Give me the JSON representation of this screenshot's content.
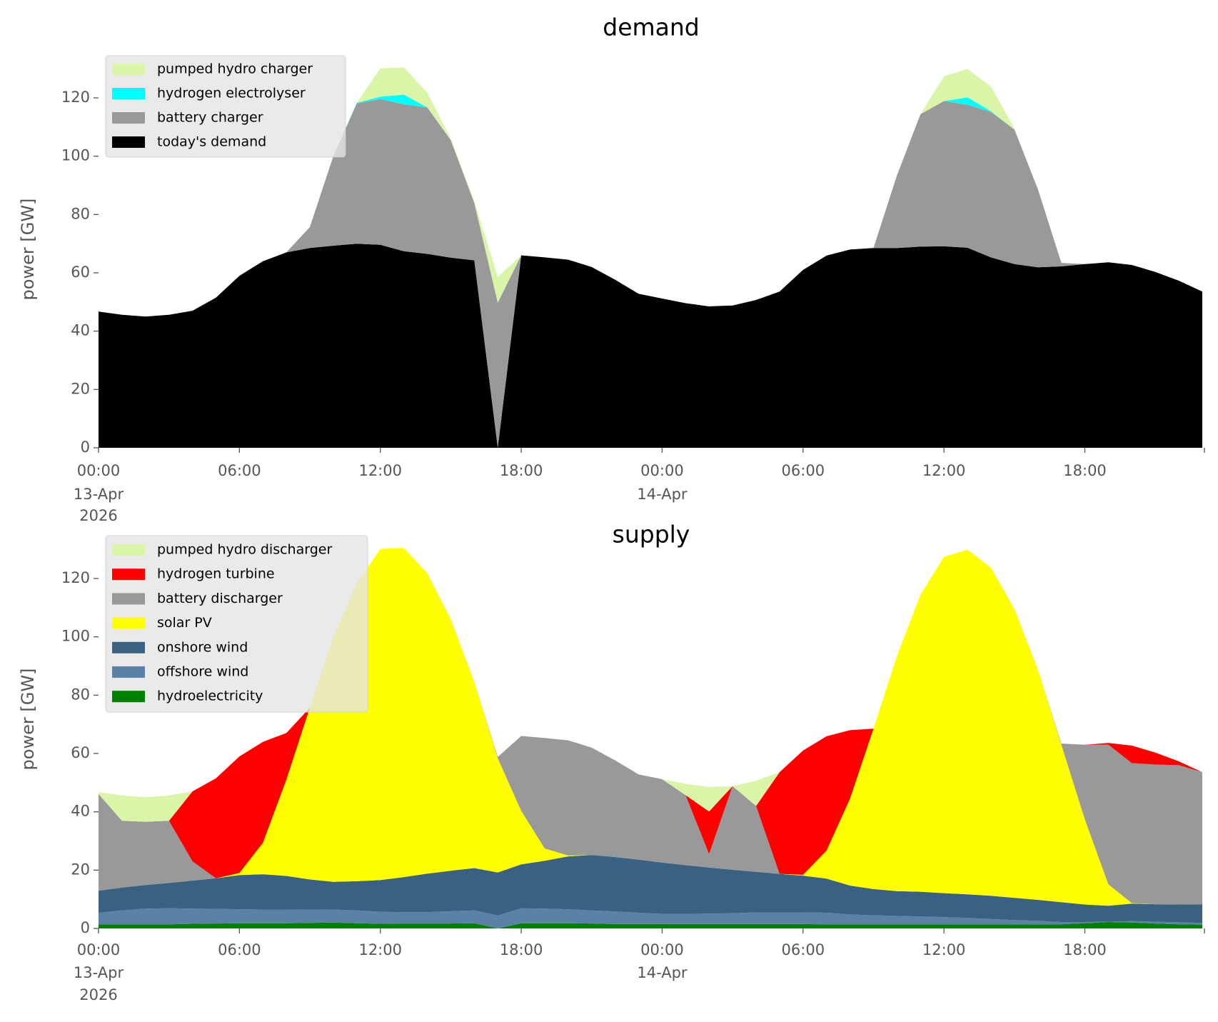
{
  "chart_data": [
    {
      "type": "area",
      "stacked": true,
      "title": "demand",
      "ylabel": "power [GW]",
      "xlabel": "",
      "ylim": [
        0,
        135
      ],
      "grid": false,
      "legend_position": "top-left",
      "y_ticks": [
        "0",
        "20",
        "40",
        "60",
        "80",
        "100",
        "120"
      ],
      "x_ticks": [
        {
          "time": "00:00",
          "date": "13-Apr",
          "year": "2026"
        },
        {
          "time": "06:00"
        },
        {
          "time": "12:00"
        },
        {
          "time": "18:00"
        },
        {
          "time": "00:00",
          "date": "14-Apr"
        },
        {
          "time": "06:00"
        },
        {
          "time": "12:00"
        },
        {
          "time": "18:00"
        }
      ],
      "x": [
        "2026-04-13 00:00",
        "2026-04-13 01:00",
        "2026-04-13 02:00",
        "2026-04-13 03:00",
        "2026-04-13 04:00",
        "2026-04-13 05:00",
        "2026-04-13 06:00",
        "2026-04-13 07:00",
        "2026-04-13 08:00",
        "2026-04-13 09:00",
        "2026-04-13 10:00",
        "2026-04-13 11:00",
        "2026-04-13 12:00",
        "2026-04-13 13:00",
        "2026-04-13 14:00",
        "2026-04-13 15:00",
        "2026-04-13 16:00",
        "2026-04-13 17:00",
        "2026-04-13 18:00",
        "2026-04-13 19:00",
        "2026-04-13 20:00",
        "2026-04-13 21:00",
        "2026-04-13 22:00",
        "2026-04-13 23:00",
        "2026-04-14 00:00",
        "2026-04-14 01:00",
        "2026-04-14 02:00",
        "2026-04-14 03:00",
        "2026-04-14 04:00",
        "2026-04-14 05:00",
        "2026-04-14 06:00",
        "2026-04-14 07:00",
        "2026-04-14 08:00",
        "2026-04-14 09:00",
        "2026-04-14 10:00",
        "2026-04-14 11:00",
        "2026-04-14 12:00",
        "2026-04-14 13:00",
        "2026-04-14 14:00",
        "2026-04-14 15:00",
        "2026-04-14 16:00",
        "2026-04-14 17:00",
        "2026-04-14 18:00",
        "2026-04-14 19:00",
        "2026-04-14 20:00",
        "2026-04-14 21:00",
        "2026-04-14 22:00",
        "2026-04-14 23:00"
      ],
      "series": [
        {
          "name": "today's demand",
          "color": "#000000",
          "values": [
            46.7,
            45.6,
            45,
            45.6,
            47,
            51.5,
            59,
            64,
            67,
            68.5,
            69.3,
            70,
            69.6,
            67.4,
            66.5,
            65.2,
            64.3,
            0,
            66,
            65.3,
            64.5,
            62,
            57.6,
            52.8,
            51.2,
            49.6,
            48.5,
            48.8,
            50.7,
            53.6,
            61,
            65.9,
            68,
            68.5,
            68.5,
            69,
            69.1,
            68.6,
            65.3,
            63,
            61.9,
            62.2,
            63,
            63.6,
            62.7,
            60.3,
            57.3,
            53.6
          ]
        },
        {
          "name": "battery charger",
          "color": "#999999",
          "values": [
            0,
            0,
            0,
            0,
            0,
            0,
            0,
            0,
            0,
            7.2,
            30.7,
            48.1,
            50,
            50.4,
            50.2,
            40.3,
            19.7,
            49.8,
            0,
            0,
            0,
            0,
            0,
            0,
            0,
            0,
            0,
            0,
            0,
            0,
            0,
            0,
            0,
            0,
            25,
            45.4,
            49.8,
            49,
            49.9,
            46.1,
            26.8,
            1.2,
            0,
            0,
            0,
            0,
            0,
            0
          ]
        },
        {
          "name": "hydrogen electrolyser",
          "color": "#00ffff",
          "values": [
            0,
            0,
            0,
            0,
            0,
            0,
            0,
            0,
            0,
            0,
            0,
            0.2,
            0.8,
            3.3,
            0,
            0,
            0,
            0,
            0,
            0,
            0,
            0,
            0,
            0,
            0,
            0,
            0,
            0,
            0,
            0,
            0,
            0,
            0,
            0,
            0,
            0,
            0,
            2.6,
            0.2,
            0,
            0,
            0,
            0,
            0,
            0,
            0,
            0,
            0
          ]
        },
        {
          "name": "pumped hydro charger",
          "color": "#d9f5a8",
          "values": [
            0,
            0,
            0,
            0,
            0,
            0,
            0,
            0,
            0,
            0,
            0,
            0,
            9.7,
            9.4,
            5.1,
            0.5,
            0.5,
            8.8,
            0,
            0,
            0,
            0,
            0,
            0,
            0,
            0,
            0,
            0,
            0,
            0,
            0,
            0,
            0,
            0,
            0,
            0,
            8.5,
            9.7,
            8.5,
            0.4,
            0,
            0,
            0,
            0,
            0,
            0,
            0,
            0
          ]
        }
      ]
    },
    {
      "type": "area",
      "stacked": true,
      "title": "supply",
      "ylabel": "power [GW]",
      "xlabel": "",
      "ylim": [
        0,
        135
      ],
      "grid": false,
      "legend_position": "top-left",
      "y_ticks": [
        "0",
        "20",
        "40",
        "60",
        "80",
        "100",
        "120"
      ],
      "x_ticks": [
        {
          "time": "00:00",
          "date": "13-Apr",
          "year": "2026"
        },
        {
          "time": "06:00"
        },
        {
          "time": "12:00"
        },
        {
          "time": "18:00"
        },
        {
          "time": "00:00",
          "date": "14-Apr"
        },
        {
          "time": "06:00"
        },
        {
          "time": "12:00"
        },
        {
          "time": "18:00"
        }
      ],
      "x": [
        "2026-04-13 00:00",
        "2026-04-13 01:00",
        "2026-04-13 02:00",
        "2026-04-13 03:00",
        "2026-04-13 04:00",
        "2026-04-13 05:00",
        "2026-04-13 06:00",
        "2026-04-13 07:00",
        "2026-04-13 08:00",
        "2026-04-13 09:00",
        "2026-04-13 10:00",
        "2026-04-13 11:00",
        "2026-04-13 12:00",
        "2026-04-13 13:00",
        "2026-04-13 14:00",
        "2026-04-13 15:00",
        "2026-04-13 16:00",
        "2026-04-13 17:00",
        "2026-04-13 18:00",
        "2026-04-13 19:00",
        "2026-04-13 20:00",
        "2026-04-13 21:00",
        "2026-04-13 22:00",
        "2026-04-13 23:00",
        "2026-04-14 00:00",
        "2026-04-14 01:00",
        "2026-04-14 02:00",
        "2026-04-14 03:00",
        "2026-04-14 04:00",
        "2026-04-14 05:00",
        "2026-04-14 06:00",
        "2026-04-14 07:00",
        "2026-04-14 08:00",
        "2026-04-14 09:00",
        "2026-04-14 10:00",
        "2026-04-14 11:00",
        "2026-04-14 12:00",
        "2026-04-14 13:00",
        "2026-04-14 14:00",
        "2026-04-14 15:00",
        "2026-04-14 16:00",
        "2026-04-14 17:00",
        "2026-04-14 18:00",
        "2026-04-14 19:00",
        "2026-04-14 20:00",
        "2026-04-14 21:00",
        "2026-04-14 22:00",
        "2026-04-14 23:00"
      ],
      "series": [
        {
          "name": "hydroelectricity",
          "color": "#008000",
          "values": [
            1.4,
            1.4,
            1.4,
            1.4,
            1.6,
            1.7,
            1.8,
            1.8,
            1.8,
            1.9,
            2.0,
            1.8,
            1.6,
            1.7,
            1.7,
            1.7,
            1.8,
            0,
            1.8,
            1.8,
            1.8,
            1.7,
            1.5,
            1.5,
            1.5,
            1.5,
            1.5,
            1.5,
            1.5,
            1.5,
            1.5,
            1.4,
            1.4,
            1.4,
            1.4,
            1.4,
            1.4,
            1.4,
            1.4,
            1.4,
            1.4,
            1.4,
            1.8,
            2.2,
            2.0,
            1.7,
            1.4,
            1.3
          ]
        },
        {
          "name": "offshore wind",
          "color": "#5b82a6",
          "values": [
            4.0,
            4.8,
            5.4,
            5.5,
            5.2,
            5.0,
            4.8,
            4.7,
            4.7,
            4.5,
            4.5,
            4.4,
            4.1,
            3.9,
            3.9,
            4.2,
            4.4,
            4.4,
            5.1,
            5.0,
            4.8,
            4.5,
            4.3,
            3.9,
            3.5,
            3.5,
            3.6,
            3.7,
            4.0,
            4.0,
            4.0,
            4.0,
            3.4,
            3.1,
            2.9,
            2.7,
            2.5,
            2.2,
            1.8,
            1.5,
            1.2,
            0.8,
            0.4,
            0.1,
            0.5,
            0.6,
            0.7,
            0.6
          ]
        },
        {
          "name": "onshore wind",
          "color": "#3b6182",
          "values": [
            7.5,
            7.8,
            8.1,
            8.7,
            9.6,
            10.5,
            11.7,
            12.1,
            11.5,
            10.4,
            9.5,
            10.0,
            10.9,
            12.0,
            13.2,
            13.9,
            14.5,
            14.8,
            15.1,
            16.4,
            18.1,
            19.0,
            18.7,
            18.2,
            17.6,
            16.7,
            15.8,
            14.9,
            13.9,
            13.2,
            12.6,
            11.7,
            9.9,
            9.0,
            8.5,
            8.5,
            8.2,
            8.1,
            8.0,
            7.6,
            7.2,
            6.8,
            6.0,
            5.5,
            6.0,
            6.0,
            6.1,
            6.4
          ]
        },
        {
          "name": "solar PV",
          "color": "#ffff00",
          "values": [
            0,
            0,
            0,
            0,
            0,
            0,
            0.7,
            10.8,
            33,
            58.9,
            84,
            102.1,
            113.5,
            112.9,
            103,
            86.2,
            63.8,
            39.2,
            18.3,
            4.2,
            0.3,
            0,
            0,
            0,
            0,
            0,
            0,
            0,
            0,
            0,
            0.3,
            9.6,
            29.8,
            55,
            80.7,
            101.8,
            115.3,
            118.2,
            112.5,
            99,
            78.9,
            54,
            29.2,
            7.3,
            0.2,
            0,
            0,
            0
          ]
        },
        {
          "name": "battery discharger",
          "color": "#999999",
          "values": [
            33.2,
            22.9,
            21.7,
            21.3,
            6.6,
            0,
            0,
            0,
            0,
            0,
            0,
            0,
            0,
            0,
            0,
            0,
            0,
            0.4,
            25.7,
            37.9,
            39.5,
            36.8,
            33.1,
            29.2,
            28.6,
            24,
            4.6,
            28.7,
            22.6,
            0,
            0,
            0,
            0,
            0,
            0,
            0,
            0,
            0,
            0,
            0,
            0,
            0.4,
            25.6,
            47.9,
            48,
            47.9,
            47.8,
            45.3
          ]
        },
        {
          "name": "hydrogen turbine",
          "color": "#ff0000",
          "values": [
            0,
            0,
            0,
            0,
            24,
            34.3,
            40,
            34.6,
            16,
            0,
            0,
            0,
            0,
            0,
            0,
            0,
            0,
            0,
            0,
            0,
            0,
            0,
            0,
            0,
            0,
            0,
            14.6,
            0,
            0,
            34.9,
            42.6,
            39.2,
            23.5,
            0,
            0,
            0,
            0,
            0,
            0,
            0,
            0,
            0,
            0,
            0.6,
            6,
            4.1,
            1.3,
            0
          ]
        },
        {
          "name": "pumped hydro discharger",
          "color": "#d9f5a8",
          "values": [
            0.6,
            8.7,
            8.4,
            8.7,
            0,
            0,
            0,
            0,
            0,
            0,
            0,
            0,
            0,
            0,
            0,
            0,
            0,
            0,
            0,
            0,
            0,
            0,
            0,
            0,
            0,
            3.9,
            8.4,
            0,
            8.7,
            0,
            0,
            0,
            0,
            0,
            0,
            0,
            0,
            0,
            0,
            0,
            0,
            0,
            0,
            0,
            0,
            0,
            0,
            0
          ]
        }
      ]
    }
  ]
}
